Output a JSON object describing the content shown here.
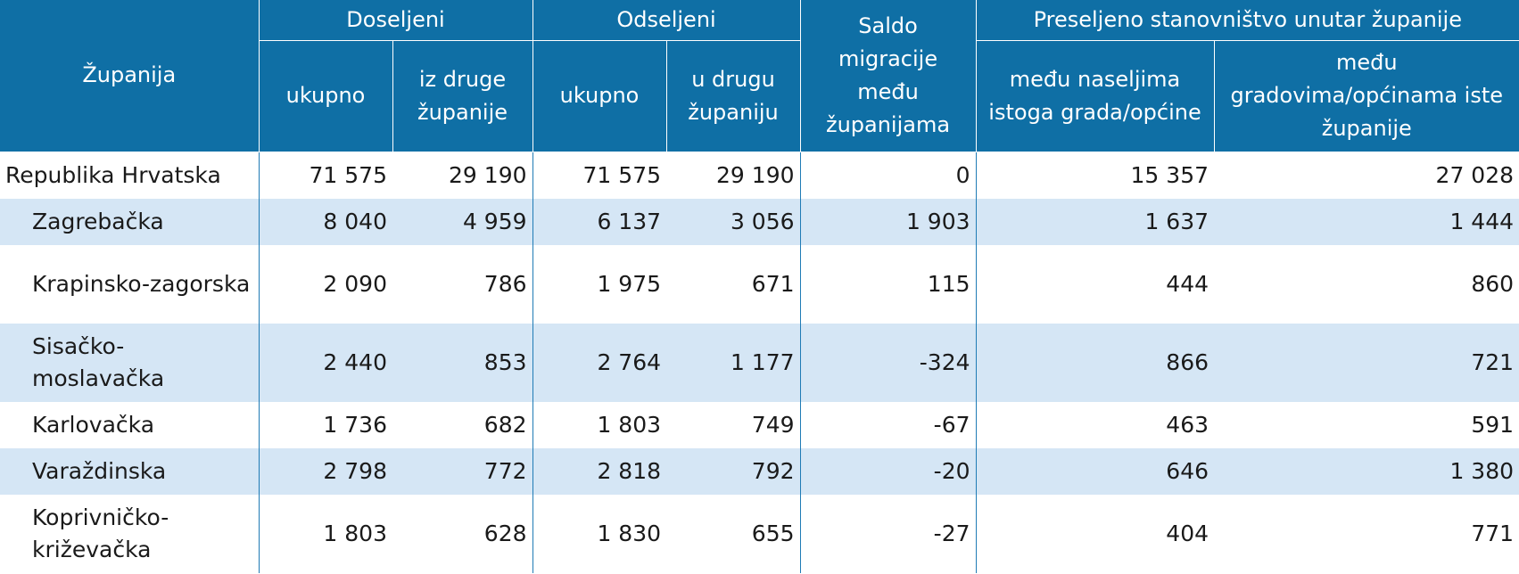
{
  "header": {
    "county": "Županija",
    "immigrated": "Doseljeni",
    "emigrated": "Odseljeni",
    "balance": "Saldo migracije među županijama",
    "within": "Preseljeno stanovništvo unutar županije",
    "imm_total": "ukupno",
    "imm_other": "iz druge županije",
    "emi_total": "ukupno",
    "emi_other": "u drugu županiju",
    "within_settlements": "među naseljima istoga grada/općine",
    "within_towns": "među gradovima/općinama iste županije"
  },
  "rows": [
    {
      "name": "Republika Hrvatska",
      "imm_total": "71 575",
      "imm_other": "29 190",
      "emi_total": "71 575",
      "emi_other": "29 190",
      "balance": "0",
      "settlements": "15 357",
      "towns": "27 028"
    },
    {
      "name": "Zagrebačka",
      "imm_total": "8 040",
      "imm_other": "4 959",
      "emi_total": "6 137",
      "emi_other": "3 056",
      "balance": "1 903",
      "settlements": "1 637",
      "towns": "1 444"
    },
    {
      "name": "Krapinsko-zagorska",
      "imm_total": "2 090",
      "imm_other": "786",
      "emi_total": "1 975",
      "emi_other": "671",
      "balance": "115",
      "settlements": "444",
      "towns": "860"
    },
    {
      "name": "Sisačko-moslavačka",
      "imm_total": "2 440",
      "imm_other": "853",
      "emi_total": "2 764",
      "emi_other": "1 177",
      "balance": "-324",
      "settlements": "866",
      "towns": "721"
    },
    {
      "name": "Karlovačka",
      "imm_total": "1 736",
      "imm_other": "682",
      "emi_total": "1 803",
      "emi_other": "749",
      "balance": "-67",
      "settlements": "463",
      "towns": "591"
    },
    {
      "name": "Varaždinska",
      "imm_total": "2 798",
      "imm_other": "772",
      "emi_total": "2 818",
      "emi_other": "792",
      "balance": "-20",
      "settlements": "646",
      "towns": "1 380"
    },
    {
      "name": "Koprivničko-križevačka",
      "imm_total": "1 803",
      "imm_other": "628",
      "emi_total": "1 830",
      "emi_other": "655",
      "balance": "-27",
      "settlements": "404",
      "towns": "771"
    }
  ],
  "colors": {
    "header_bg": "#0f6fa5",
    "shade_bg": "#d5e6f5",
    "grid_line": "#1f7bb5"
  }
}
